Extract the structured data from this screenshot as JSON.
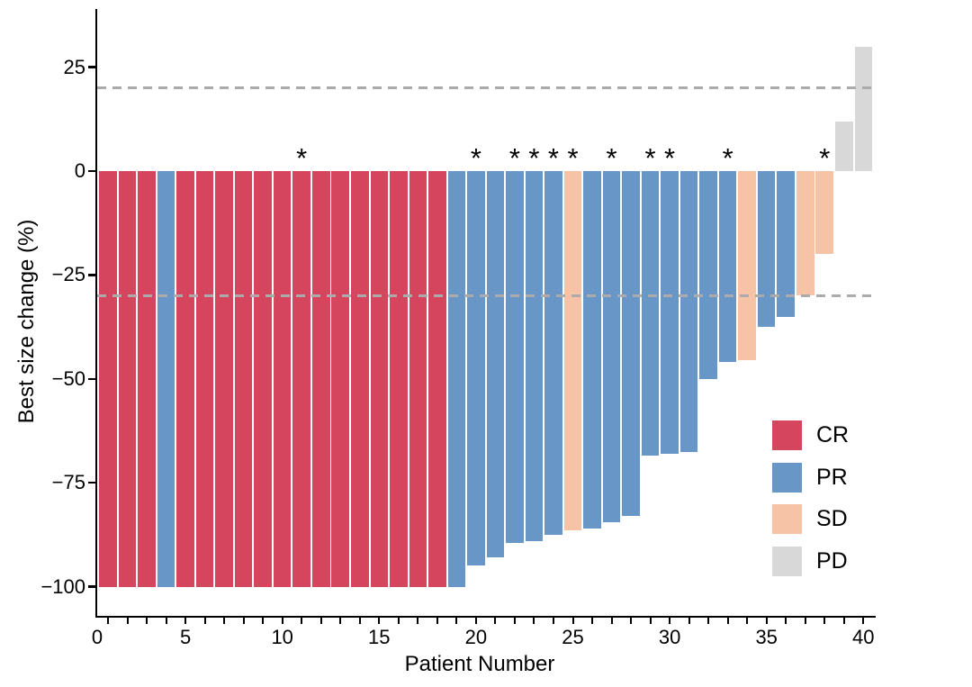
{
  "chart_data": {
    "type": "bar",
    "title": "",
    "xlabel": "Patient Number",
    "ylabel": "Best size change (%)",
    "xlim": [
      0,
      40
    ],
    "ylim": [
      -105,
      33
    ],
    "n_patients": 40,
    "x_major_ticks": [
      0,
      5,
      10,
      15,
      20,
      25,
      30,
      35,
      40
    ],
    "x_tick_labels": [
      "0",
      "5",
      "10",
      "15",
      "20",
      "25",
      "30",
      "35",
      "40"
    ],
    "x_minor_tick_every": 1,
    "y_ticks": [
      25,
      0,
      -25,
      -50,
      -75,
      -100
    ],
    "y_tick_labels": [
      "25",
      "0",
      "−25",
      "−50",
      "−75",
      "−100"
    ],
    "grid": "off",
    "reference_lines": {
      "values": [
        20,
        -30
      ],
      "style": "dashed",
      "color": "#ababab"
    },
    "annotation_symbol": "*",
    "annotated_patients": [
      11,
      20,
      22,
      23,
      24,
      25,
      27,
      29,
      30,
      33,
      38
    ],
    "legend_position": "bottom-right-inside",
    "patients": [
      {
        "patient": 1,
        "value": -100,
        "response": "CR",
        "annotated": false
      },
      {
        "patient": 2,
        "value": -100,
        "response": "CR",
        "annotated": false
      },
      {
        "patient": 3,
        "value": -100,
        "response": "CR",
        "annotated": false
      },
      {
        "patient": 4,
        "value": -100,
        "response": "PR",
        "annotated": false
      },
      {
        "patient": 5,
        "value": -100,
        "response": "CR",
        "annotated": false
      },
      {
        "patient": 6,
        "value": -100,
        "response": "CR",
        "annotated": false
      },
      {
        "patient": 7,
        "value": -100,
        "response": "CR",
        "annotated": false
      },
      {
        "patient": 8,
        "value": -100,
        "response": "CR",
        "annotated": false
      },
      {
        "patient": 9,
        "value": -100,
        "response": "CR",
        "annotated": false
      },
      {
        "patient": 10,
        "value": -100,
        "response": "CR",
        "annotated": false
      },
      {
        "patient": 11,
        "value": -100,
        "response": "CR",
        "annotated": true
      },
      {
        "patient": 12,
        "value": -100,
        "response": "CR",
        "annotated": false
      },
      {
        "patient": 13,
        "value": -100,
        "response": "CR",
        "annotated": false
      },
      {
        "patient": 14,
        "value": -100,
        "response": "CR",
        "annotated": false
      },
      {
        "patient": 15,
        "value": -100,
        "response": "CR",
        "annotated": false
      },
      {
        "patient": 16,
        "value": -100,
        "response": "CR",
        "annotated": false
      },
      {
        "patient": 17,
        "value": -100,
        "response": "CR",
        "annotated": false
      },
      {
        "patient": 18,
        "value": -100,
        "response": "CR",
        "annotated": false
      },
      {
        "patient": 19,
        "value": -100,
        "response": "PR",
        "annotated": false
      },
      {
        "patient": 20,
        "value": -95,
        "response": "PR",
        "annotated": true
      },
      {
        "patient": 21,
        "value": -93,
        "response": "PR",
        "annotated": false
      },
      {
        "patient": 22,
        "value": -89.5,
        "response": "PR",
        "annotated": true
      },
      {
        "patient": 23,
        "value": -89,
        "response": "PR",
        "annotated": true
      },
      {
        "patient": 24,
        "value": -87.5,
        "response": "PR",
        "annotated": true
      },
      {
        "patient": 25,
        "value": -86.5,
        "response": "SD",
        "annotated": true
      },
      {
        "patient": 26,
        "value": -86,
        "response": "PR",
        "annotated": false
      },
      {
        "patient": 27,
        "value": -84.5,
        "response": "PR",
        "annotated": true
      },
      {
        "patient": 28,
        "value": -83,
        "response": "PR",
        "annotated": false
      },
      {
        "patient": 29,
        "value": -68.5,
        "response": "PR",
        "annotated": true
      },
      {
        "patient": 30,
        "value": -68,
        "response": "PR",
        "annotated": true
      },
      {
        "patient": 31,
        "value": -67.5,
        "response": "PR",
        "annotated": false
      },
      {
        "patient": 32,
        "value": -50,
        "response": "PR",
        "annotated": false
      },
      {
        "patient": 33,
        "value": -46,
        "response": "PR",
        "annotated": true
      },
      {
        "patient": 34,
        "value": -45.5,
        "response": "SD",
        "annotated": false
      },
      {
        "patient": 35,
        "value": -37.5,
        "response": "PR",
        "annotated": false
      },
      {
        "patient": 36,
        "value": -35,
        "response": "PR",
        "annotated": false
      },
      {
        "patient": 37,
        "value": -30,
        "response": "SD",
        "annotated": false
      },
      {
        "patient": 38,
        "value": -20,
        "response": "SD",
        "annotated": true
      },
      {
        "patient": 39,
        "value": 12,
        "response": "PD",
        "annotated": false
      },
      {
        "patient": 40,
        "value": 30,
        "response": "PD",
        "annotated": false
      }
    ]
  },
  "legend": [
    {
      "label": "CR",
      "color": "#d5455e"
    },
    {
      "label": "PR",
      "color": "#6896c6"
    },
    {
      "label": "SD",
      "color": "#f6c3a7"
    },
    {
      "label": "PD",
      "color": "#d8d8d8"
    }
  ],
  "colors": {
    "axis": "#000000",
    "reference_line": "#ababab",
    "background": "#ffffff"
  }
}
